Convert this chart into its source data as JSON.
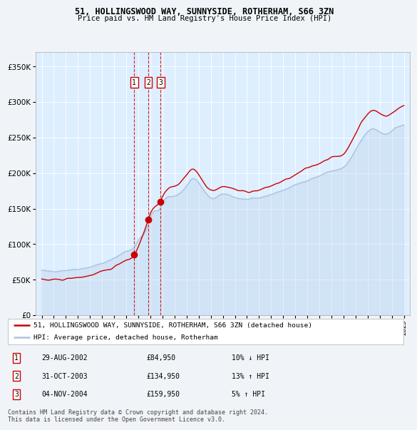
{
  "title": "51, HOLLINGSWOOD WAY, SUNNYSIDE, ROTHERHAM, S66 3ZN",
  "subtitle": "Price paid vs. HM Land Registry's House Price Index (HPI)",
  "legend_line1": "51, HOLLINGSWOOD WAY, SUNNYSIDE, ROTHERHAM, S66 3ZN (detached house)",
  "legend_line2": "HPI: Average price, detached house, Rotherham",
  "transactions": [
    {
      "num": 1,
      "date": "29-AUG-2002",
      "price": 84950,
      "pct": "10%",
      "dir": "↓"
    },
    {
      "num": 2,
      "date": "31-OCT-2003",
      "price": 134950,
      "pct": "13%",
      "dir": "↑"
    },
    {
      "num": 3,
      "date": "04-NOV-2004",
      "price": 159950,
      "pct": "5%",
      "dir": "↑"
    }
  ],
  "trans_years": [
    2002.66,
    2003.83,
    2004.84
  ],
  "trans_prices": [
    84950,
    134950,
    159950
  ],
  "vline_years": [
    2002.66,
    2003.83,
    2004.84
  ],
  "ytick_vals": [
    0,
    50000,
    100000,
    150000,
    200000,
    250000,
    300000,
    350000
  ],
  "xmin": 1994.5,
  "xmax": 2025.5,
  "ymin": 0,
  "ymax": 370000,
  "hpi_color": "#aac4e0",
  "property_color": "#cc0000",
  "vline_color": "#cc0000",
  "bg_plot": "#ddeeff",
  "bg_fig": "#f0f4f8",
  "grid_color": "#ffffff",
  "footnote": "Contains HM Land Registry data © Crown copyright and database right 2024.\nThis data is licensed under the Open Government Licence v3.0."
}
